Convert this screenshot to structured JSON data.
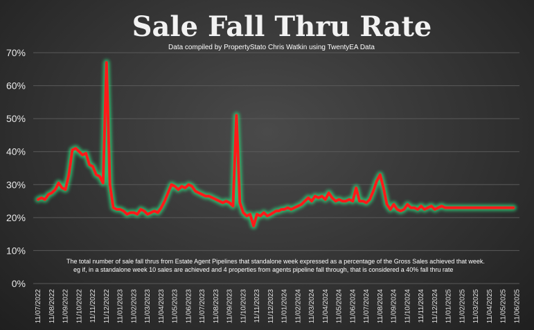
{
  "chart_data": {
    "type": "line",
    "title": "Sale Fall Thru Rate",
    "subtitle": "Data compiled by PropertyStato Chris Watkin using TwentyEA Data",
    "annotation": [
      "The total number of sale fall thrus from Estate Agent Pipelines that standalone week expressed as a percentage of the Gross Sales achieved that week.",
      "eg if, in a standalone week 10 sales are achieved and 4 properties from agents pipeline fall through, that is considered a 40%  fall thru rate"
    ],
    "ylim": [
      0,
      70
    ],
    "yticks": [
      0,
      10,
      20,
      30,
      40,
      50,
      60,
      70
    ],
    "ytick_labels": [
      "0%",
      "10%",
      "20%",
      "30%",
      "40%",
      "50%",
      "60%",
      "70%"
    ],
    "x_labels": [
      "11/07/2022",
      "11/08/2022",
      "11/09/2022",
      "11/10/2022",
      "11/11/2022",
      "11/12/2022",
      "11/01/2023",
      "11/02/2023",
      "11/03/2023",
      "11/04/2023",
      "11/05/2023",
      "11/06/2023",
      "11/07/2023",
      "11/08/2023",
      "11/09/2023",
      "11/10/2023",
      "11/11/2023",
      "11/12/2023",
      "11/01/2024",
      "11/02/2024",
      "11/03/2024",
      "11/04/2024",
      "11/05/2024",
      "11/06/2024",
      "11/07/2024",
      "11/08/2024",
      "11/09/2024",
      "11/10/2024",
      "11/11/2024",
      "11/12/2024",
      "11/01/2025",
      "11/02/2025",
      "11/03/2025",
      "11/04/2025",
      "11/05/2025",
      "11/06/2025"
    ],
    "grid": true,
    "line_color": "#ff1a1a",
    "glow_color": "#2fd67a",
    "series": [
      {
        "x_month_index": [
          0,
          0.25,
          0.5,
          0.75,
          1,
          1.25,
          1.5,
          1.75,
          2,
          2.25,
          2.5,
          2.75,
          3,
          3.25,
          3.5,
          3.75,
          4,
          4.25,
          4.5,
          4.75,
          5,
          5.25,
          5.5,
          5.75,
          6,
          6.25,
          6.5,
          6.75,
          7,
          7.25,
          7.5,
          7.75,
          8,
          8.25,
          8.5,
          8.75,
          9,
          9.25,
          9.5,
          9.75,
          10,
          10.25,
          10.5,
          10.75,
          11,
          11.25,
          11.5,
          11.75,
          12,
          12.25,
          12.5,
          12.75,
          13,
          13.25,
          13.5,
          13.75,
          14,
          14.25,
          14.5,
          14.75,
          15,
          15.25,
          15.5,
          15.75,
          16,
          16.25,
          16.5,
          16.75,
          17,
          17.2,
          17.4,
          17.6,
          17.8,
          18,
          18.25,
          18.5,
          18.75,
          19,
          19.25,
          19.5,
          19.75,
          20,
          20.25,
          20.5,
          20.75,
          21,
          21.25,
          21.5,
          21.75,
          22,
          22.25,
          22.5,
          22.75,
          23,
          23.25,
          23.5,
          23.75,
          24,
          24.25,
          24.5,
          24.75,
          25,
          25.25,
          25.5,
          25.75,
          26,
          26.25,
          26.5,
          26.75,
          27,
          27.25,
          27.5,
          27.75,
          28,
          28.25,
          28.5,
          28.75,
          29,
          29.25,
          29.5,
          29.75,
          30,
          30.25,
          30.5,
          30.75,
          31,
          31.25,
          31.5,
          31.75,
          32,
          32.25,
          32.5,
          32.75,
          33,
          33.25,
          33.5,
          33.75,
          34,
          34.25,
          34.5,
          34.75,
          35
        ],
        "values": [
          25.5,
          26,
          25.5,
          27,
          27.5,
          28.5,
          30.5,
          29,
          28.5,
          33,
          40.5,
          41,
          40,
          39,
          39.5,
          36,
          35.5,
          33,
          32.5,
          30.5,
          67,
          30,
          23,
          22.5,
          22.5,
          22,
          21,
          21.5,
          21.5,
          21,
          22.5,
          22,
          21,
          21.5,
          22,
          21.5,
          23,
          25,
          27.5,
          30,
          29.5,
          28.5,
          29.5,
          29,
          30,
          29.5,
          28,
          27.5,
          27,
          26.5,
          26.5,
          26,
          25.5,
          25,
          24.5,
          25,
          24.5,
          23.5,
          51,
          24.5,
          21.5,
          20.5,
          21,
          17.5,
          21,
          20.5,
          21.5,
          20.5,
          21,
          21.5,
          22,
          22,
          22.5,
          22.5,
          23,
          22.5,
          23,
          23.5,
          24,
          25,
          26,
          25,
          26.5,
          26,
          26.5,
          25.5,
          27.5,
          26,
          25,
          25.5,
          25,
          25,
          25.5,
          25,
          29,
          25,
          25,
          24.5,
          25.5,
          28,
          31,
          33,
          29,
          24,
          22.5,
          24,
          22.5,
          22,
          22.5,
          24,
          23,
          23,
          22.5,
          23.5,
          22.5,
          23,
          23.5,
          22.5,
          23,
          23.5,
          23,
          23,
          23,
          23,
          23,
          23,
          23,
          23,
          23,
          23,
          23,
          23,
          23,
          23,
          23,
          23,
          23,
          23,
          23,
          23,
          23
        ]
      }
    ]
  }
}
